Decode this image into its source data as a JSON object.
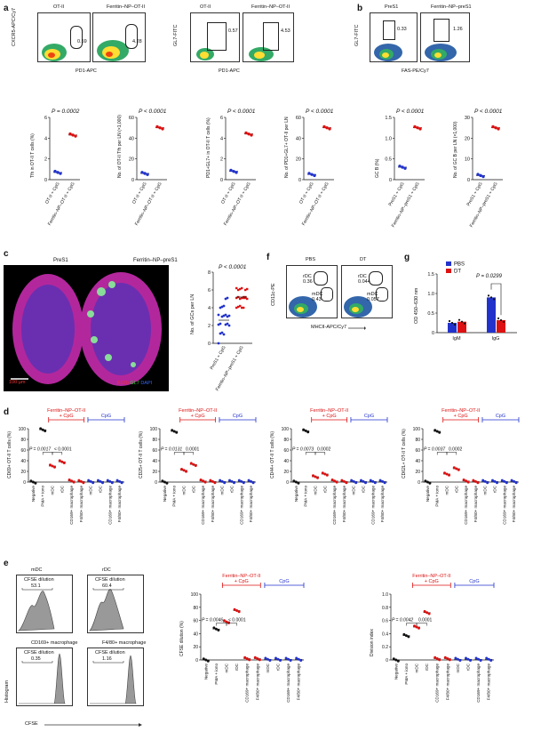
{
  "panel_labels": [
    "a",
    "b",
    "c",
    "d",
    "e",
    "f",
    "g"
  ],
  "a": {
    "flow1": {
      "left_title": "OT-II",
      "right_title": "Ferritin–NP–OT-II",
      "ylabel": "CXCR5-APC/Cy7",
      "xlabel": "PD1-APC",
      "left_pct": "0.59",
      "right_pct": "4.28"
    },
    "flow2": {
      "left_title": "OT-II",
      "right_title": "Ferritin–NP–OT-II",
      "ylabel": "GL7-FITC",
      "xlabel": "PD1-APC",
      "left_pct": "0.57",
      "right_pct": "4.53"
    },
    "scatter": [
      {
        "p": "P = 0.0002",
        "ylabel": "Tfh in OT-II T cells (%)",
        "x": [
          "OT-II + CpG",
          "Ferritin–NP–OT-II + CpG"
        ],
        "yticks": [
          "0",
          "2",
          "4",
          "6"
        ],
        "ymax": 6,
        "v1": 0.7,
        "v2": 4.3,
        "c1": "#23c",
        "c2": "#d11"
      },
      {
        "p": "P < 0.0001",
        "ylabel": "No. of OT-II Tfh per LN (×1,000)",
        "x": [
          "OT-II + CpG",
          "Ferritin–NP–OT-II + CpG"
        ],
        "yticks": [
          "0",
          "20",
          "40",
          "60"
        ],
        "ymax": 60,
        "v1": 6,
        "v2": 50,
        "c1": "#23c",
        "c2": "#d11"
      },
      {
        "p": "P < 0.0001",
        "ylabel": "PD1+GL7+ in OT-II T cells (%)",
        "x": [
          "OT-II + CpG",
          "Ferritin–NP–OT-II + CpG"
        ],
        "yticks": [
          "0",
          "2",
          "4",
          "6"
        ],
        "ymax": 6,
        "v1": 0.8,
        "v2": 4.4,
        "c1": "#23c",
        "c2": "#d11"
      },
      {
        "p": "P < 0.0001",
        "ylabel": "No. of PD1+GL7+ OT-II per LN",
        "x": [
          "OT-II + CpG",
          "Ferritin–NP–OT-II + CpG"
        ],
        "yticks": [
          "0",
          "20",
          "40",
          "60"
        ],
        "ymax": 60,
        "v1": 5,
        "v2": 50,
        "c1": "#23c",
        "c2": "#d11"
      }
    ]
  },
  "b": {
    "flow": {
      "left_title": "PreS1",
      "right_title": "Ferritin–NP–preS1",
      "ylabel": "GL7-FITC",
      "xlabel": "FAS-PE/Cy7",
      "left_pct": "0.33",
      "right_pct": "1.26"
    },
    "scatter": [
      {
        "p": "P < 0.0001",
        "ylabel": "GC B (%)",
        "x": [
          "PreS1 + CpG",
          "Ferritin–NP–preS1 + CpG"
        ],
        "yticks": [
          "0",
          "0.5",
          "1.0",
          "1.5"
        ],
        "ymax": 1.5,
        "v1": 0.3,
        "v2": 1.25,
        "c1": "#23c",
        "c2": "#d11"
      },
      {
        "p": "P < 0.0001",
        "ylabel": "No. of GC B per LN (×1,000)",
        "x": [
          "PreS1 + CpG",
          "Ferritin–NP–preS1 + CpG"
        ],
        "yticks": [
          "0",
          "10",
          "20",
          "30"
        ],
        "ymax": 30,
        "v1": 2,
        "v2": 25,
        "c1": "#23c",
        "c2": "#d11"
      }
    ]
  },
  "c": {
    "left_title": "PreS1",
    "right_title": "Ferritin–NP–preS1",
    "scale": "100 µm",
    "stain": [
      "B220",
      "GL7",
      "DAPI"
    ],
    "stain_colors": [
      "#e33",
      "#3c3",
      "#36f"
    ],
    "p": "P < 0.0001",
    "ylabel": "No. of GCs per LN",
    "yticks": [
      "0",
      "2",
      "4",
      "6",
      "8"
    ],
    "x": [
      "PreS1 + CpG",
      "Ferritin–NP–preS1 + CpG"
    ]
  },
  "f": {
    "left_title": "PBS",
    "right_title": "DT",
    "ylabel": "CD11c-PE",
    "xlabel": "MHCII-APC/Cy7",
    "gate1": "rDC",
    "gate2": "mDC",
    "pbs_r": "0.36",
    "pbs_m": "0.43",
    "dt_r": "0.044",
    "dt_m": "0.057"
  },
  "g": {
    "legend": [
      "PBS",
      "DT"
    ],
    "legend_colors": [
      "#23c",
      "#d11"
    ],
    "p": "P = 0.0299",
    "ylabel": "OD 450–630 nm",
    "yticks": [
      "0",
      "0.5",
      "1.0",
      "1.5"
    ],
    "categories": [
      "IgM",
      "IgG"
    ],
    "chart_data": {
      "type": "bar",
      "categories": [
        "IgM",
        "IgG"
      ],
      "series": [
        {
          "name": "PBS",
          "values": [
            0.25,
            0.9
          ]
        },
        {
          "name": "DT",
          "values": [
            0.28,
            0.32
          ]
        }
      ],
      "ylim": [
        0,
        1.5
      ]
    }
  },
  "d": {
    "header_red": "Ferritin–NP–OT-II + CpG",
    "header_blue": "CpG",
    "categories": [
      "Negative",
      "PMA + iono",
      "mDC",
      "rDC",
      "CD169+ macrophage",
      "F4/80+ macrophage",
      "mDC",
      "rDC",
      "CD169+ macrophage",
      "F4/80+ macrophage"
    ],
    "panels": [
      {
        "ylabel": "CD69+ OT-II T cells (%)",
        "pa": "P = 0.0017",
        "pb": "< 0.0001",
        "yticks": [
          "0",
          "20",
          "40",
          "60",
          "80",
          "100"
        ]
      },
      {
        "ylabel": "CD25+ OT-II T cells (%)",
        "pa": "P = 0.0131",
        "pb": "0.0001",
        "yticks": [
          "0",
          "20",
          "40",
          "60",
          "80",
          "100"
        ]
      },
      {
        "ylabel": "CD44+ OT-II T cells (%)",
        "pa": "P = 0.0073",
        "pb": "0.0002",
        "yticks": [
          "0",
          "20",
          "40",
          "60",
          "80",
          "100"
        ]
      },
      {
        "ylabel": "CD62L+ OT-II T cells (%)",
        "pa": "P = 0.0037",
        "pb": "0.0002",
        "yticks": [
          "0",
          "20",
          "40",
          "60",
          "80",
          "100"
        ]
      }
    ],
    "values": [
      [
        0,
        98,
        30,
        38,
        2,
        1,
        1,
        1,
        1,
        1
      ],
      [
        0,
        95,
        22,
        33,
        2,
        1,
        1,
        1,
        1,
        1
      ],
      [
        0,
        96,
        10,
        15,
        2,
        1,
        1,
        1,
        1,
        1
      ],
      [
        0,
        95,
        15,
        25,
        2,
        1,
        1,
        1,
        1,
        1
      ]
    ]
  },
  "e": {
    "hist": [
      {
        "title": "mDC",
        "label": "CFSE dilution",
        "value": "53.1"
      },
      {
        "title": "rDC",
        "label": "CFSE dilution",
        "value": "60.4"
      },
      {
        "title": "CD169+ macrophage",
        "label": "CFSE dilution",
        "value": "0.35"
      },
      {
        "title": "F4/80+ macrophage",
        "label": "CFSE dilution",
        "value": "1.16"
      }
    ],
    "hist_ylabel": "Histogram",
    "hist_xlabel": "CFSE",
    "header_red": "Ferritin–NP–OT-II + CpG",
    "header_blue": "CpG",
    "p1a": "P = 0.0046",
    "p1b": "< 0.0001",
    "p2a": "P = 0.0042",
    "p2b": "0.0001",
    "ylabel1": "CFSE dilution (%)",
    "ylabel2": "Division index",
    "yticks1": [
      "0",
      "20",
      "40",
      "60",
      "80",
      "100"
    ],
    "yticks2": [
      "0",
      "0.2",
      "0.4",
      "0.6",
      "0.8",
      "1.0"
    ],
    "categories": [
      "Negative",
      "PMA + iono",
      "mDC",
      "rDC",
      "CD169+ macrophage",
      "F4/80+ macrophage",
      "mDC",
      "rDC",
      "CD169+ macrophage",
      "F4/80+ macrophage"
    ],
    "values1": [
      0,
      47,
      58,
      75,
      2,
      2,
      1,
      1,
      1,
      1
    ],
    "values2": [
      0,
      0.37,
      0.5,
      0.72,
      0.02,
      0.02,
      0.01,
      0.01,
      0.01,
      0.01
    ]
  }
}
